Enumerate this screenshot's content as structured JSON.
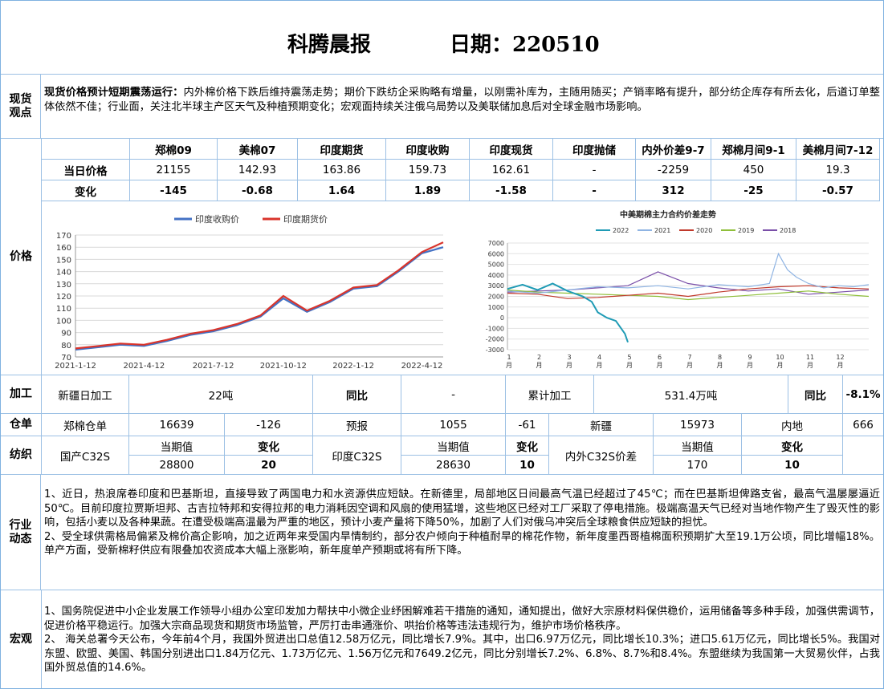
{
  "header": {
    "title": "科腾晨报",
    "date_label": "日期：220510"
  },
  "spot": {
    "label": "现货观点",
    "bold_lead": "现货价格预计短期震荡运行：",
    "text": "内外棉价格下跌后维持震荡走势；期价下跌纺企采购略有增量，以刚需补库为，主随用随买；产销率略有提升，部分纺企库存有所去化，后道订单整体依然不佳；行业面，关注北半球主产区天气及种植预期变化；宏观面持续关注俄乌局势以及美联储加息后对全球金融市场影响。"
  },
  "price_table": {
    "columns": [
      "郑棉09",
      "美棉07",
      "印度期货",
      "印度收购",
      "印度现货",
      "印度抛储",
      "内外价差9-7",
      "郑棉月间9-1",
      "美棉月间7-12"
    ],
    "rows": [
      {
        "label": "当日价格",
        "values": [
          "21155",
          "142.93",
          "163.86",
          "159.73",
          "162.61",
          "-",
          "-2259",
          "450",
          "19.3"
        ]
      },
      {
        "label": "变化",
        "values": [
          "-145",
          "-0.68",
          "1.64",
          "1.89",
          "-1.58",
          "-",
          "312",
          "-25",
          "-0.57"
        ]
      }
    ]
  },
  "price_label": "价格",
  "chart_data": [
    {
      "type": "line",
      "title": "",
      "legend": [
        "印度收购价",
        "印度期货价"
      ],
      "legend_position": "top",
      "colors": [
        "#4472c4",
        "#d9342b"
      ],
      "x_tick_labels": [
        "2021-1-12",
        "2021-4-12",
        "2021-7-12",
        "2021-10-12",
        "2022-1-12",
        "2022-4-12"
      ],
      "x": [
        "2021-01-12",
        "2021-02-12",
        "2021-03-12",
        "2021-04-12",
        "2021-05-12",
        "2021-06-12",
        "2021-07-12",
        "2021-08-12",
        "2021-09-12",
        "2021-10-12",
        "2021-11-12",
        "2021-12-12",
        "2022-01-12",
        "2022-02-12",
        "2022-03-12",
        "2022-04-12",
        "2022-05-10"
      ],
      "series": [
        {
          "name": "印度收购价",
          "values": [
            76,
            78,
            80,
            79,
            83,
            88,
            91,
            96,
            103,
            118,
            107,
            115,
            126,
            128,
            140,
            155,
            160
          ]
        },
        {
          "name": "印度期货价",
          "values": [
            77,
            79,
            81,
            80,
            84,
            89,
            92,
            97,
            104,
            120,
            108,
            116,
            127,
            129,
            141,
            156,
            164
          ]
        }
      ],
      "ylim": [
        70,
        170
      ],
      "yticks": [
        70,
        80,
        90,
        100,
        110,
        120,
        130,
        140,
        150,
        160,
        170
      ],
      "grid": true
    },
    {
      "type": "line",
      "title": "中美期棉主力合约价差走势",
      "legend": [
        "2022",
        "2021",
        "2020",
        "2019",
        "2018"
      ],
      "legend_position": "top",
      "colors": [
        "#1f9bb5",
        "#8fb4e3",
        "#c0392b",
        "#8fbf3a",
        "#7a4fa8"
      ],
      "x_tick_labels": [
        "1\n月",
        "2\n月",
        "3\n月",
        "4\n月",
        "5\n月",
        "6\n月",
        "7\n月",
        "8\n月",
        "9\n月",
        "10\n月",
        "11\n月",
        "12\n月"
      ],
      "ylim": [
        -3000,
        7000
      ],
      "yticks": [
        -3000,
        -2000,
        -1000,
        0,
        1000,
        2000,
        3000,
        4000,
        5000,
        6000,
        7000
      ],
      "series": [
        {
          "name": "2022",
          "x": [
            1,
            1.5,
            2,
            2.5,
            3,
            3.5,
            3.8,
            4,
            4.3,
            4.6,
            4.9,
            5.0
          ],
          "values": [
            2700,
            3100,
            2600,
            3200,
            2500,
            2000,
            1500,
            500,
            0,
            -300,
            -1500,
            -2300
          ]
        },
        {
          "name": "2021",
          "x": [
            1,
            2,
            3,
            4,
            5,
            6,
            7,
            8,
            9,
            9.7,
            10,
            10.3,
            10.6,
            11,
            11.5,
            12,
            12.5,
            13
          ],
          "values": [
            2500,
            2300,
            2600,
            2900,
            2800,
            3000,
            2700,
            3100,
            2900,
            3200,
            6000,
            4500,
            3800,
            3200,
            2800,
            3000,
            2900,
            3100
          ]
        },
        {
          "name": "2020",
          "x": [
            1,
            2,
            3,
            4,
            5,
            6,
            7,
            8,
            9,
            10,
            11,
            12,
            13
          ],
          "values": [
            2300,
            2200,
            1800,
            1900,
            2100,
            2300,
            2000,
            2400,
            2700,
            2900,
            3000,
            2800,
            2700
          ]
        },
        {
          "name": "2019",
          "x": [
            1,
            2,
            3,
            4,
            5,
            6,
            7,
            8,
            9,
            10,
            11,
            12,
            13
          ],
          "values": [
            2600,
            2400,
            2300,
            2200,
            2100,
            2000,
            1700,
            1900,
            2100,
            2300,
            2500,
            2200,
            2000
          ]
        },
        {
          "name": "2018",
          "x": [
            1,
            2,
            3,
            4,
            5,
            6,
            7,
            8,
            9,
            10,
            11,
            12,
            13
          ],
          "values": [
            2400,
            2500,
            2600,
            2800,
            3000,
            4300,
            3200,
            2800,
            2500,
            2700,
            2200,
            2400,
            2600
          ]
        }
      ],
      "grid": true
    }
  ],
  "processing": {
    "label": "加工",
    "cells": [
      "新疆日加工",
      "22吨",
      "同比",
      "-",
      "累计加工",
      "531.4万吨",
      "同比",
      "-8.1%"
    ]
  },
  "warehouse": {
    "label": "仓单",
    "cells": [
      "郑棉仓单",
      "16639",
      "-126",
      "预报",
      "1055",
      "-61",
      "新疆",
      "15973",
      "内地",
      "666"
    ]
  },
  "textile": {
    "label": "纺织",
    "groups": [
      {
        "name": "国产C32S",
        "h1": "当期值",
        "h2": "变化",
        "v1": "28800",
        "v2": "20"
      },
      {
        "name": "印度C32S",
        "h1": "当期值",
        "h2": "变化",
        "v1": "28630",
        "v2": "10"
      },
      {
        "name": "内外C32S价差",
        "h1": "当期值",
        "h2": "变化",
        "v1": "170",
        "v2": "10"
      }
    ]
  },
  "industry": {
    "label": "行业动态",
    "p1": "1、近日，热浪席卷印度和巴基斯坦，直接导致了两国电力和水资源供应短缺。在新德里，局部地区日间最高气温已经超过了45℃；而在巴基斯坦俾路支省，最高气温屡屡逼近50℃。目前印度拉贾斯坦邦、古吉拉特邦和安得拉邦的电力消耗因空调和风扇的使用猛增，这些地区已经对工厂采取了停电措施。极端高温天气已经对当地作物产生了毁灭性的影响，包括小麦以及各种果蔬。在遭受极端高温最为严重的地区，预计小麦产量将下降50%，加剧了人们对俄乌冲突后全球粮食供应短缺的担忧。",
    "p2": "2、受全球供需格局偏紧及棉价高企影响，加之近两年来受国内旱情制约，部分农户倾向于种植耐旱的棉花作物，新年度墨西哥植棉面积预期扩大至19.1万公顷，同比增幅18%。单产方面，受新棉籽供应有限叠加农资成本大幅上涨影响，新年度单产预期或将有所下降。"
  },
  "macro": {
    "label": "宏观",
    "p1": "1、国务院促进中小企业发展工作领导小组办公室印发加力帮扶中小微企业纾困解难若干措施的通知，通知提出，做好大宗原材料保供稳价，运用储备等多种手段，加强供需调节，促进价格平稳运行。加强大宗商品现货和期货市场监管，严厉打击串通涨价、哄抬价格等违法违规行为，维护市场价格秩序。",
    "p2": "2、 海关总署今天公布，今年前4个月，我国外贸进出口总值12.58万亿元，同比增长7.9%。其中，出口6.97万亿元，同比增长10.3%；进口5.61万亿元，同比增长5%。我国对东盟、欧盟、美国、韩国分别进出口1.84万亿元、1.73万亿元、1.56万亿元和7649.2亿元，同比分别增长7.2%、6.8%、8.7%和8.4%。东盟继续为我国第一大贸易伙伴，占我国外贸总值的14.6%。"
  }
}
